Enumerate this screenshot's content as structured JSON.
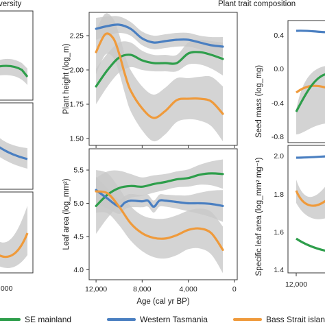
{
  "headers": {
    "left": "versity",
    "right": "Plant trait composition"
  },
  "legend": [
    {
      "label": "SE mainland",
      "color": "#2e9e4b"
    },
    {
      "label": "Western Tasmania",
      "color": "#4a7fc1"
    },
    {
      "label": "Bass Strait islands",
      "color": "#ef9a3b"
    }
  ],
  "colors": {
    "band": "#c8c8c8",
    "axis": "#333333"
  },
  "chart_data": [
    {
      "id": "plant-height",
      "type": "line",
      "ylabel": "Plant height (log_m)",
      "xlabel": "",
      "xlim": [
        12600,
        -250
      ],
      "ylim": [
        1.45,
        2.42
      ],
      "xticks": [
        12000,
        8000,
        4000,
        0
      ],
      "xticklabels": [],
      "yticks": [
        1.5,
        1.75,
        2.0,
        2.25
      ],
      "yticklabels": [
        "1.50",
        "1.75",
        "2.00",
        "2.25"
      ],
      "series": [
        {
          "name": "SE mainland",
          "color": "#2e9e4b",
          "x": [
            12000,
            11000,
            10000,
            9000,
            8000,
            7000,
            6000,
            5000,
            4000,
            3000,
            2000,
            1000
          ],
          "y": [
            1.88,
            2.0,
            2.09,
            2.11,
            2.07,
            2.05,
            2.05,
            2.05,
            2.12,
            2.13,
            2.11,
            2.08
          ],
          "band": [
            0.13,
            0.12,
            0.11,
            0.09,
            0.07,
            0.06,
            0.06,
            0.06,
            0.08,
            0.09,
            0.1,
            0.12
          ]
        },
        {
          "name": "Western Tasmania",
          "color": "#4a7fc1",
          "x": [
            12000,
            11000,
            10000,
            9000,
            8000,
            7000,
            6000,
            5000,
            4000,
            3000,
            2000,
            1000
          ],
          "y": [
            2.3,
            2.32,
            2.33,
            2.3,
            2.23,
            2.2,
            2.21,
            2.22,
            2.22,
            2.2,
            2.18,
            2.17
          ],
          "band": [
            0.08,
            0.07,
            0.06,
            0.05,
            0.05,
            0.05,
            0.05,
            0.05,
            0.05,
            0.05,
            0.06,
            0.07
          ]
        },
        {
          "name": "Bass Strait islands",
          "color": "#ef9a3b",
          "x": [
            12000,
            11200,
            10500,
            10000,
            9500,
            9000,
            8000,
            7000,
            6000,
            5000,
            4000,
            3000,
            2000,
            1000
          ],
          "y": [
            2.13,
            2.26,
            2.23,
            2.12,
            1.97,
            1.85,
            1.72,
            1.65,
            1.7,
            1.78,
            1.79,
            1.79,
            1.77,
            1.68
          ],
          "band": [
            0.16,
            0.15,
            0.14,
            0.14,
            0.14,
            0.15,
            0.16,
            0.17,
            0.17,
            0.16,
            0.15,
            0.16,
            0.18,
            0.2
          ]
        }
      ]
    },
    {
      "id": "leaf-area",
      "type": "line",
      "ylabel": "Leaf area (log_mm²)",
      "xlabel": "Age (cal yr BP)",
      "xlim": [
        12600,
        -250
      ],
      "ylim": [
        3.85,
        5.82
      ],
      "xticks": [
        12000,
        8000,
        4000,
        0
      ],
      "xticklabels": [
        "12,000",
        "8,000",
        "4,000",
        "0"
      ],
      "yticks": [
        4.0,
        4.5,
        5.0,
        5.5
      ],
      "yticklabels": [
        "4.0",
        "4.5",
        "5.0",
        "5.5"
      ],
      "series": [
        {
          "name": "SE mainland",
          "color": "#2e9e4b",
          "x": [
            12000,
            11000,
            10000,
            9000,
            8000,
            7000,
            6000,
            5000,
            4000,
            3000,
            2000,
            1000
          ],
          "y": [
            4.96,
            5.13,
            5.23,
            5.26,
            5.25,
            5.29,
            5.32,
            5.36,
            5.38,
            5.43,
            5.45,
            5.44
          ],
          "band": [
            0.42,
            0.35,
            0.26,
            0.18,
            0.14,
            0.13,
            0.12,
            0.12,
            0.13,
            0.15,
            0.18,
            0.22
          ]
        },
        {
          "name": "Western Tasmania",
          "color": "#4a7fc1",
          "x": [
            12000,
            11000,
            10000,
            9500,
            9000,
            8000,
            7500,
            7000,
            6500,
            6000,
            5000,
            4000,
            3000,
            2000,
            1000
          ],
          "y": [
            5.2,
            5.07,
            4.95,
            5.01,
            5.04,
            5.03,
            5.04,
            4.95,
            5.04,
            5.04,
            5.02,
            5.0,
            5.0,
            4.99,
            4.96
          ],
          "band": [
            0.2,
            0.15,
            0.11,
            0.1,
            0.1,
            0.09,
            0.09,
            0.09,
            0.09,
            0.09,
            0.1,
            0.12,
            0.16,
            0.2,
            0.24
          ]
        },
        {
          "name": "Bass Strait islands",
          "color": "#ef9a3b",
          "x": [
            12000,
            11000,
            10000,
            9000,
            8000,
            7000,
            6000,
            5000,
            4000,
            3000,
            2000,
            1000
          ],
          "y": [
            5.18,
            5.15,
            4.95,
            4.7,
            4.55,
            4.48,
            4.47,
            4.52,
            4.6,
            4.62,
            4.55,
            4.3
          ],
          "band": [
            0.32,
            0.3,
            0.28,
            0.26,
            0.27,
            0.29,
            0.3,
            0.3,
            0.29,
            0.3,
            0.32,
            0.35
          ]
        }
      ]
    }
  ]
}
